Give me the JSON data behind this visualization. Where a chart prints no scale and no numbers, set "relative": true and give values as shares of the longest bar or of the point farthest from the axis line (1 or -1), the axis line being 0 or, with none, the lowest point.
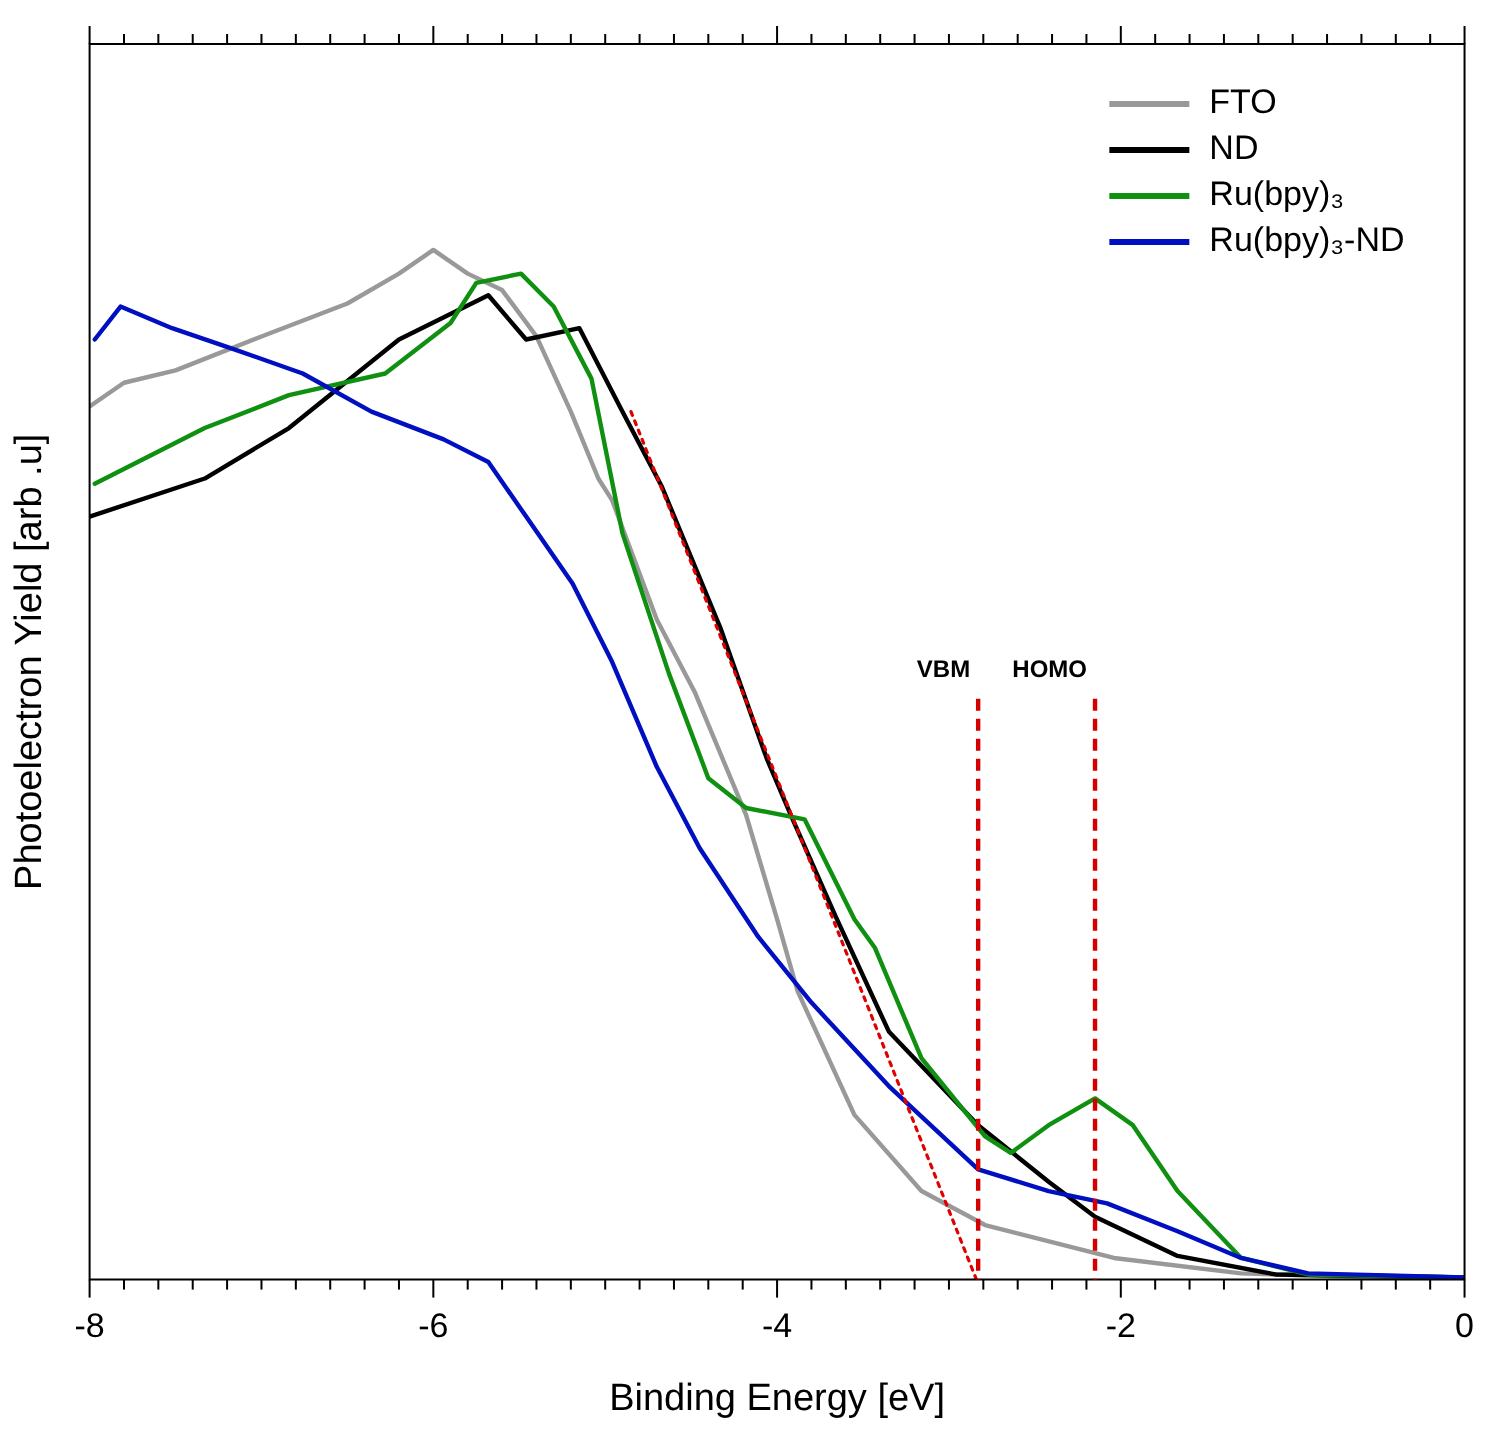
{
  "chart_data": {
    "type": "line",
    "xlabel": "Binding Energy [eV]",
    "ylabel": "Photoelectron Yield [arb .u]",
    "relative": true,
    "xlim": [
      -8,
      0
    ],
    "xticks": [
      -8,
      {
        "value": -7.8,
        "label": null
      },
      {
        "value": -7.6,
        "label": null
      },
      {
        "value": -7.4,
        "label": null
      },
      {
        "value": -7.2,
        "label": null
      },
      {
        "value": -7,
        "label": null
      },
      {
        "value": -6.8,
        "label": null
      },
      {
        "value": -6.6,
        "label": null
      },
      {
        "value": -6.4,
        "label": null
      },
      {
        "value": -6.2,
        "label": null
      },
      -6,
      {
        "value": -5.8,
        "label": null
      },
      {
        "value": -5.6,
        "label": null
      },
      {
        "value": -5.4,
        "label": null
      },
      {
        "value": -5.2,
        "label": null
      },
      {
        "value": -5,
        "label": null
      },
      {
        "value": -4.8,
        "label": null
      },
      {
        "value": -4.6,
        "label": null
      },
      {
        "value": -4.4,
        "label": null
      },
      {
        "value": -4.2,
        "label": null
      },
      -4,
      {
        "value": -3.8,
        "label": null
      },
      {
        "value": -3.6,
        "label": null
      },
      {
        "value": -3.4,
        "label": null
      },
      {
        "value": -3.2,
        "label": null
      },
      {
        "value": -3,
        "label": null
      },
      {
        "value": -2.8,
        "label": null
      },
      {
        "value": -2.6,
        "label": null
      },
      {
        "value": -2.4,
        "label": null
      },
      {
        "value": -2.2,
        "label": null
      },
      -2,
      {
        "value": -1.8,
        "label": null
      },
      {
        "value": -1.6,
        "label": null
      },
      {
        "value": -1.4,
        "label": null
      },
      {
        "value": -1.2,
        "label": null
      },
      {
        "value": -1,
        "label": null
      },
      {
        "value": -0.8,
        "label": null
      },
      {
        "value": -0.6,
        "label": null
      },
      {
        "value": -0.4,
        "label": null
      },
      {
        "value": -0.2,
        "label": null
      },
      0
    ],
    "grid": false,
    "legend": "top right",
    "marker": "none",
    "line_style": "solid",
    "series": [
      {
        "name": "FTO",
        "color": "#999999",
        "x": [
          -8,
          -7.8,
          -7.5,
          -7,
          -6.5,
          -6.2,
          -6,
          -5.8,
          -5.6,
          -5.4,
          -5.2,
          -5.04,
          -4.96,
          -4.7,
          -4.48,
          -4.18,
          -4,
          -3.88,
          -3.55,
          -3.16,
          -2.79,
          -2.04,
          -1.3,
          -0.5,
          0
        ],
        "values": [
          0.848,
          0.871,
          0.883,
          0.916,
          0.948,
          0.977,
          1,
          0.977,
          0.961,
          0.916,
          0.843,
          0.778,
          0.757,
          0.641,
          0.571,
          0.451,
          0.35,
          0.28,
          0.16,
          0.086,
          0.053,
          0.021,
          0.006,
          0.002,
          0.002
        ]
      },
      {
        "name": "ND",
        "color": "#000000",
        "x": [
          -8,
          -7.33,
          -6.84,
          -6.2,
          -5.68,
          -5.46,
          -5.15,
          -4.9,
          -4.67,
          -4.33,
          -4.06,
          -3.92,
          -3.66,
          -3.35,
          -2.83,
          -2.42,
          -2.15,
          -1.67,
          -1.1,
          0
        ],
        "values": [
          0.741,
          0.778,
          0.827,
          0.913,
          0.956,
          0.913,
          0.924,
          0.843,
          0.77,
          0.633,
          0.506,
          0.451,
          0.353,
          0.241,
          0.15,
          0.095,
          0.061,
          0.023,
          0.005,
          0.002
        ]
      },
      {
        "name": "Ru(bpy)₃",
        "color": "#109010",
        "x": [
          -7.97,
          -7.33,
          -6.84,
          -6.28,
          -5.9,
          -5.75,
          -5.49,
          -5.3,
          -5.08,
          -4.9,
          -4.63,
          -4.4,
          -4.18,
          -3.84,
          -3.55,
          -3.43,
          -3.16,
          -2.79,
          -2.64,
          -2.42,
          -2.15,
          -1.93,
          -1.67,
          -1.3,
          -0.91,
          0
        ],
        "values": [
          0.773,
          0.827,
          0.859,
          0.88,
          0.929,
          0.968,
          0.977,
          0.945,
          0.875,
          0.725,
          0.589,
          0.487,
          0.458,
          0.447,
          0.35,
          0.322,
          0.215,
          0.139,
          0.123,
          0.15,
          0.176,
          0.15,
          0.086,
          0.021,
          0.005,
          0.002
        ]
      },
      {
        "name": "Ru(bpy)₃-ND",
        "color": "#0010c0",
        "x": [
          -7.97,
          -7.82,
          -7.52,
          -7.15,
          -6.76,
          -6.36,
          -5.94,
          -5.68,
          -5.46,
          -5.19,
          -4.96,
          -4.7,
          -4.45,
          -4.11,
          -3.8,
          -3.35,
          -2.83,
          -2.42,
          -2.08,
          -1.67,
          -1.3,
          -0.91,
          0
        ],
        "values": [
          0.913,
          0.945,
          0.924,
          0.903,
          0.88,
          0.843,
          0.816,
          0.794,
          0.741,
          0.676,
          0.6,
          0.498,
          0.419,
          0.333,
          0.269,
          0.188,
          0.107,
          0.086,
          0.074,
          0.047,
          0.021,
          0.006,
          0.002
        ]
      },
      {
        "type": "line",
        "color": "#e00000",
        "line_style": "dotted",
        "x": [
          -4.85,
          -2.84
        ],
        "values": [
          0.843,
          0
        ]
      }
    ],
    "ref_lines": [
      {
        "axis": "x",
        "value": -2.83,
        "label": "VBM",
        "color": "#d40000",
        "line_style": "dashed"
      },
      {
        "axis": "x",
        "value": -2.15,
        "label": "HOMO",
        "color": "#d40000",
        "line_style": "dashed"
      }
    ]
  }
}
